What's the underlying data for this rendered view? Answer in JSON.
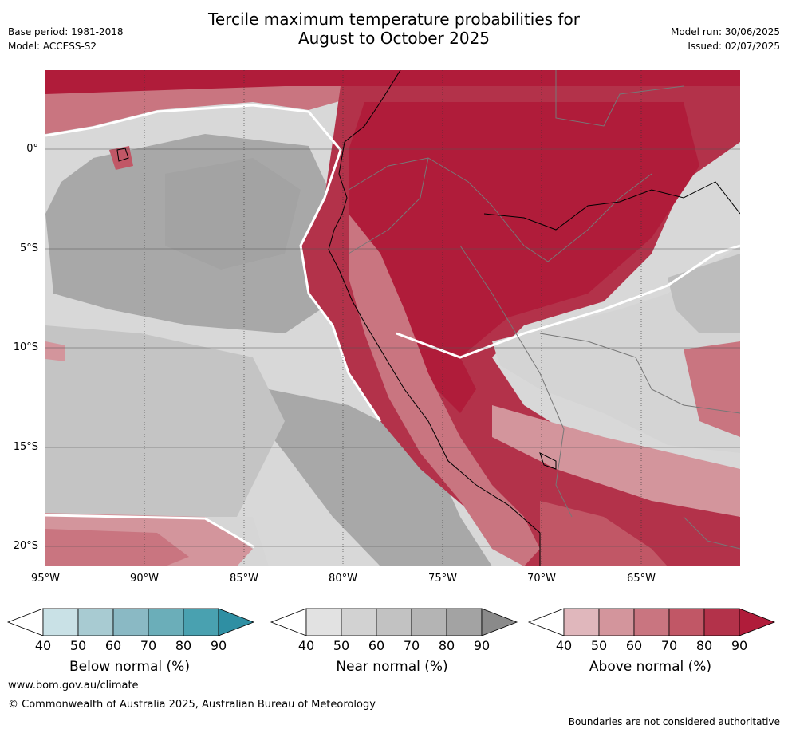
{
  "title_line1": "Tercile maximum temperature probabilities for",
  "title_line2": "August to October 2025",
  "base_period": "Base period: 1981-2018",
  "model": "Model: ACCESS-S2",
  "model_run": "Model run: 30/06/2025",
  "issued": "Issued: 02/07/2025",
  "lat_labels": [
    "0°",
    "5°S",
    "10°S",
    "15°S",
    "20°S"
  ],
  "lon_labels": [
    "95°W",
    "90°W",
    "85°W",
    "80°W",
    "75°W",
    "70°W",
    "65°W"
  ],
  "colorbars": [
    {
      "label": "Below normal (%)",
      "ticks": [
        "40",
        "50",
        "60",
        "70",
        "80",
        "90"
      ],
      "colors": [
        "#c9e1e6",
        "#a8cbd2",
        "#8ab9c4",
        "#6baeb9",
        "#49a1b0",
        "#2f8fa3"
      ]
    },
    {
      "label": "Near normal (%)",
      "ticks": [
        "40",
        "50",
        "60",
        "70",
        "80",
        "90"
      ],
      "colors": [
        "#e2e2e2",
        "#d2d2d2",
        "#c2c2c2",
        "#b4b4b4",
        "#a3a3a3",
        "#8a8a8a"
      ]
    },
    {
      "label": "Above normal (%)",
      "ticks": [
        "40",
        "50",
        "60",
        "70",
        "80",
        "90"
      ],
      "colors": [
        "#e0b7bc",
        "#d3959c",
        "#c97580",
        "#c15766",
        "#b3324a",
        "#b01c3a"
      ]
    }
  ],
  "footer_url": "www.bom.gov.au/climate",
  "footer_copyright": "© Commonwealth of Australia 2025, Australian Bureau of Meteorology",
  "disclaimer": "Boundaries are not considered authoritative"
}
